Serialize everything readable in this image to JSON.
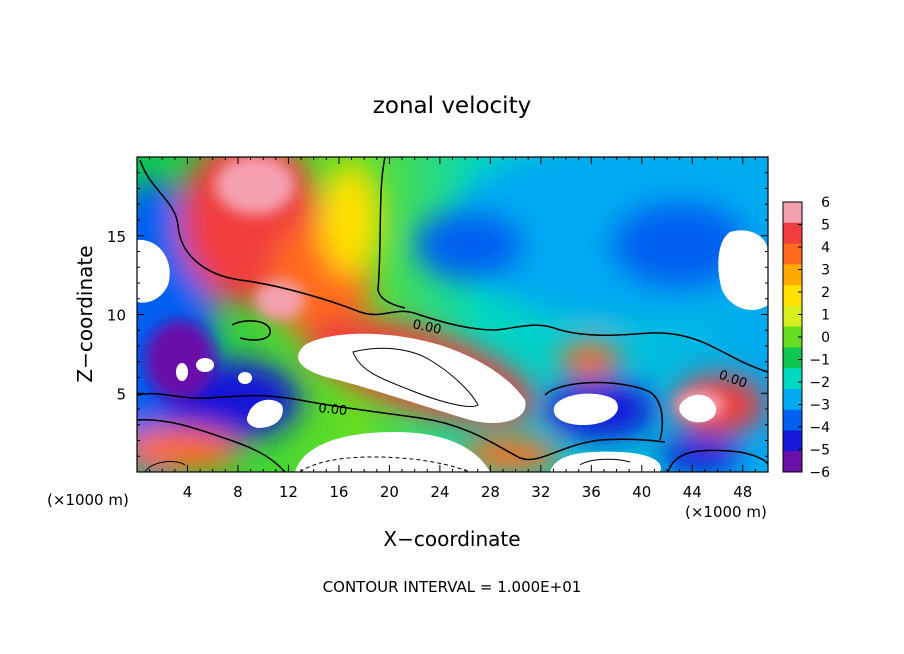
{
  "chart_data": {
    "type": "heatmap",
    "title": "zonal velocity",
    "xlabel": "X−coordinate",
    "ylabel": "Z−coordinate",
    "x_unit": "(×1000 m)",
    "z_unit": "(×1000 m)",
    "xlim": [
      0,
      50
    ],
    "ylim": [
      0,
      20
    ],
    "x_ticks": [
      "4",
      "8",
      "12",
      "16",
      "20",
      "24",
      "28",
      "32",
      "36",
      "40",
      "44",
      "48"
    ],
    "y_ticks": [
      "5",
      "10",
      "15"
    ],
    "colorbar_ticks": [
      "6",
      "5",
      "4",
      "3",
      "2",
      "1",
      "0",
      "−1",
      "−2",
      "−3",
      "−4",
      "−5",
      "−6"
    ],
    "colorbar_range": [
      -6,
      6
    ],
    "colorbar_colors": [
      "#f4a0b0",
      "#f03e3e",
      "#ff6a1f",
      "#ffaa00",
      "#ffe000",
      "#d8f020",
      "#66dd22",
      "#10c850",
      "#00d8c0",
      "#00aaf0",
      "#0060f0",
      "#1818d8",
      "#6a10a8"
    ],
    "contour_labels": [
      "0.00",
      "0.00",
      "0.00"
    ],
    "footer": "CONTOUR INTERVAL = 1.000E+01"
  }
}
